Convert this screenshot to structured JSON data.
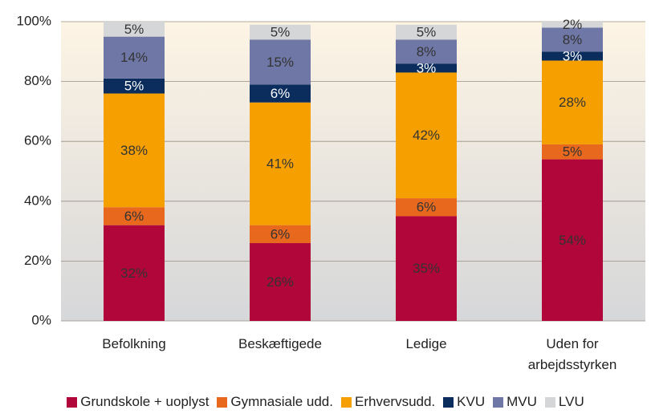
{
  "chart_data": {
    "type": "stacked_bar",
    "categories": [
      "Befolkning",
      "Beskæftigede",
      "Ledige",
      "Uden for arbejdsstyrken"
    ],
    "series": [
      {
        "name": "Grundskole + uoplyst",
        "color": "#b0063a",
        "label_color": "#333333",
        "values": [
          32,
          26,
          35,
          54
        ],
        "value_labels": [
          "32%",
          "26%",
          "35%",
          "54%"
        ]
      },
      {
        "name": "Gymnasiale udd.",
        "color": "#e8691e",
        "label_color": "#333333",
        "values": [
          6,
          6,
          6,
          5
        ],
        "value_labels": [
          "6%",
          "6%",
          "6%",
          "5%"
        ]
      },
      {
        "name": "Erhvervsudd.",
        "color": "#f5a000",
        "label_color": "#333333",
        "values": [
          38,
          41,
          42,
          28
        ],
        "value_labels": [
          "38%",
          "41%",
          "42%",
          "28%"
        ]
      },
      {
        "name": "KVU",
        "color": "#0a2d5e",
        "label_color": "#ffffff",
        "values": [
          5,
          6,
          3,
          3
        ],
        "value_labels": [
          "5%",
          "6%",
          "3%",
          "3%"
        ]
      },
      {
        "name": "MVU",
        "color": "#6f77a6",
        "label_color": "#333333",
        "values": [
          14,
          15,
          8,
          8
        ],
        "value_labels": [
          "14%",
          "15%",
          "8%",
          "8%"
        ]
      },
      {
        "name": "LVU",
        "color": "#d4d6d8",
        "label_color": "#333333",
        "values": [
          5,
          5,
          5,
          2
        ],
        "value_labels": [
          "5%",
          "5%",
          "5%",
          "2%"
        ]
      }
    ],
    "ylim": [
      0,
      100
    ],
    "yticks": [
      {
        "value": 0,
        "label": "0%"
      },
      {
        "value": 20,
        "label": "20%"
      },
      {
        "value": 40,
        "label": "40%"
      },
      {
        "value": 60,
        "label": "60%"
      },
      {
        "value": 80,
        "label": "80%"
      },
      {
        "value": 100,
        "label": "100%"
      }
    ],
    "grid": true
  }
}
